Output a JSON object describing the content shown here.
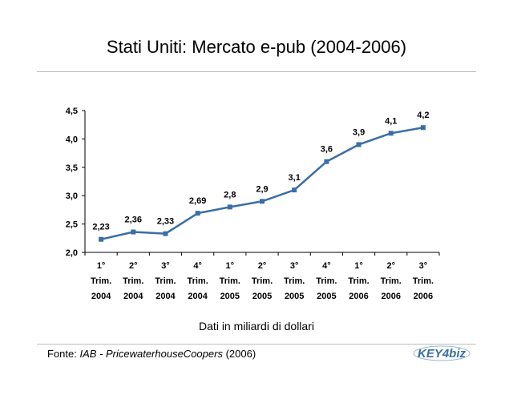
{
  "title": "Stati Uniti: Mercato e-pub (2004-2006)",
  "unit_note": "Dati in miliardi di dollari",
  "source": {
    "prefix": "Fonte: ",
    "name": "IAB - PricewaterhouseCoopers",
    "suffix": " (2006)"
  },
  "logo": {
    "icon": "key4biz-logo",
    "text": "KEY4biz",
    "color": "#3a6ea5"
  },
  "chart_data": {
    "type": "line",
    "title": "",
    "xlabel": "",
    "ylabel": "",
    "ylim": [
      2.0,
      4.5
    ],
    "yticks": [
      "2,0",
      "2,5",
      "3,0",
      "3,5",
      "4,0",
      "4,5"
    ],
    "ytick_values": [
      2.0,
      2.5,
      3.0,
      3.5,
      4.0,
      4.5
    ],
    "grid": false,
    "legend": "none",
    "line_color": "#3a6ea5",
    "categories": [
      [
        "1°",
        "Trim.",
        "2004"
      ],
      [
        "2°",
        "Trim.",
        "2004"
      ],
      [
        "3°",
        "Trim.",
        "2004"
      ],
      [
        "4°",
        "Trim.",
        "2004"
      ],
      [
        "1°",
        "Trim.",
        "2005"
      ],
      [
        "2°",
        "Trim.",
        "2005"
      ],
      [
        "3°",
        "Trim.",
        "2005"
      ],
      [
        "4°",
        "Trim.",
        "2005"
      ],
      [
        "1°",
        "Trim.",
        "2006"
      ],
      [
        "2°",
        "Trim.",
        "2006"
      ],
      [
        "3°",
        "Trim.",
        "2006"
      ]
    ],
    "values": [
      2.23,
      2.36,
      2.33,
      2.69,
      2.8,
      2.9,
      3.1,
      3.6,
      3.9,
      4.1,
      4.2
    ],
    "data_labels": [
      "2,23",
      "2,36",
      "2,33",
      "2,69",
      "2,8",
      "2,9",
      "3,1",
      "3,6",
      "3,9",
      "4,1",
      "4,2"
    ]
  }
}
